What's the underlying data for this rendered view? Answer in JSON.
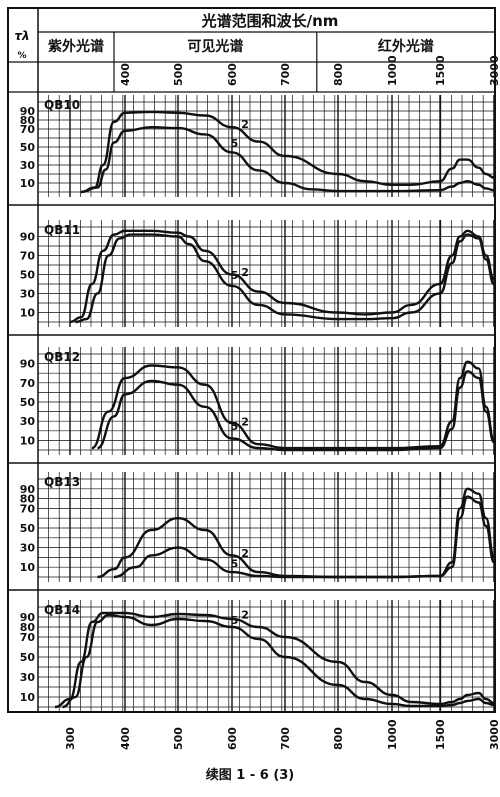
{
  "header": {
    "y_symbol": "τλ",
    "y_unit": "%",
    "title": "光谱范围和波长/nm",
    "regions": [
      "紫外光谱",
      "可见光谱",
      "红外光谱"
    ]
  },
  "caption": "续图 1 - 6 (3)",
  "chart_data": [
    {
      "type": "line",
      "title": "QB10",
      "xlabel": "光谱范围和波长/nm",
      "ylabel": "τλ %",
      "ylim": [
        0,
        100
      ],
      "y_ticks": [
        10,
        30,
        50,
        70,
        80,
        90
      ],
      "x_ticks": [
        300,
        400,
        500,
        600,
        700,
        800,
        1000,
        1500,
        3000
      ],
      "x_scale": "non-uniform (wavelength nm)",
      "grid": true,
      "series": [
        {
          "name": "2",
          "x": [
            320,
            345,
            360,
            380,
            400,
            450,
            500,
            550,
            600,
            650,
            700,
            800,
            900,
            1000,
            1200,
            1500,
            1800,
            2000,
            2200,
            2500,
            2700,
            3000
          ],
          "y": [
            0,
            5,
            30,
            78,
            88,
            89,
            88,
            85,
            72,
            56,
            40,
            20,
            12,
            8,
            8,
            12,
            26,
            36,
            36,
            27,
            20,
            16
          ]
        },
        {
          "name": "5",
          "x": [
            320,
            350,
            365,
            380,
            400,
            450,
            500,
            550,
            600,
            650,
            700,
            750,
            800,
            900,
            1000,
            1500,
            1800,
            2000,
            2200,
            2500,
            2700,
            3000
          ],
          "y": [
            0,
            5,
            25,
            55,
            68,
            72,
            71,
            64,
            44,
            24,
            10,
            3,
            1,
            1,
            1,
            2,
            6,
            10,
            12,
            8,
            4,
            2
          ]
        }
      ]
    },
    {
      "type": "line",
      "title": "QB11",
      "ylim": [
        0,
        100
      ],
      "y_ticks": [
        10,
        30,
        50,
        70,
        90
      ],
      "x_ticks": [
        300,
        400,
        500,
        600,
        700,
        800,
        1000,
        1500,
        3000
      ],
      "grid": true,
      "series": [
        {
          "name": "2",
          "x": [
            300,
            320,
            340,
            360,
            380,
            400,
            450,
            500,
            520,
            550,
            600,
            650,
            700,
            800,
            900,
            1000,
            1200,
            1500,
            1800,
            2000,
            2200,
            2500,
            2700,
            3000
          ],
          "y": [
            0,
            5,
            40,
            75,
            92,
            96,
            96,
            94,
            90,
            75,
            50,
            32,
            20,
            10,
            8,
            10,
            18,
            40,
            70,
            90,
            96,
            90,
            70,
            45
          ]
        },
        {
          "name": "5",
          "x": [
            310,
            330,
            350,
            370,
            390,
            410,
            450,
            500,
            520,
            550,
            600,
            650,
            700,
            800,
            900,
            1000,
            1200,
            1500,
            1800,
            2000,
            2200,
            2500,
            2700,
            3000
          ],
          "y": [
            0,
            3,
            30,
            70,
            88,
            92,
            92,
            90,
            82,
            64,
            38,
            18,
            8,
            3,
            3,
            4,
            10,
            30,
            62,
            85,
            92,
            88,
            66,
            40
          ]
        }
      ]
    },
    {
      "type": "line",
      "title": "QB12",
      "ylim": [
        0,
        100
      ],
      "y_ticks": [
        10,
        30,
        50,
        70,
        90
      ],
      "x_ticks": [
        300,
        400,
        500,
        600,
        700,
        800,
        1000,
        1500,
        3000
      ],
      "grid": true,
      "series": [
        {
          "name": "2",
          "x": [
            340,
            370,
            400,
            450,
            500,
            550,
            600,
            650,
            700,
            800,
            1000,
            1500,
            1800,
            2000,
            2200,
            2500,
            2700,
            3000
          ],
          "y": [
            2,
            40,
            75,
            88,
            86,
            68,
            28,
            6,
            2,
            2,
            2,
            4,
            30,
            75,
            92,
            85,
            45,
            10
          ]
        },
        {
          "name": "5",
          "x": [
            350,
            380,
            400,
            450,
            500,
            550,
            600,
            650,
            700,
            800,
            1000,
            1500,
            1800,
            2000,
            2200,
            2500,
            2700,
            3000
          ],
          "y": [
            2,
            35,
            58,
            72,
            68,
            45,
            12,
            2,
            0,
            0,
            0,
            2,
            22,
            65,
            82,
            75,
            40,
            8
          ]
        }
      ]
    },
    {
      "type": "line",
      "title": "QB13",
      "ylim": [
        0,
        100
      ],
      "y_ticks": [
        10,
        30,
        50,
        70,
        80,
        90
      ],
      "x_ticks": [
        300,
        400,
        500,
        600,
        700,
        800,
        1000,
        1500,
        3000
      ],
      "grid": true,
      "series": [
        {
          "name": "2",
          "x": [
            350,
            380,
            400,
            450,
            500,
            550,
            600,
            650,
            700,
            800,
            1000,
            1500,
            1800,
            2000,
            2200,
            2500,
            2700,
            3000
          ],
          "y": [
            0,
            8,
            20,
            48,
            60,
            48,
            22,
            5,
            1,
            0,
            0,
            1,
            15,
            70,
            90,
            85,
            60,
            20
          ]
        },
        {
          "name": "5",
          "x": [
            380,
            420,
            450,
            500,
            550,
            600,
            650,
            700,
            800,
            1000,
            1500,
            1800,
            2000,
            2200,
            2500,
            2700,
            3000
          ],
          "y": [
            0,
            10,
            22,
            30,
            18,
            5,
            1,
            0,
            0,
            0,
            1,
            10,
            60,
            82,
            76,
            52,
            15
          ]
        }
      ]
    },
    {
      "type": "line",
      "title": "QB14",
      "ylim": [
        0,
        100
      ],
      "y_ticks": [
        10,
        30,
        50,
        70,
        80,
        90
      ],
      "x_ticks": [
        300,
        400,
        500,
        600,
        700,
        800,
        1000,
        1500,
        3000
      ],
      "grid": true,
      "series": [
        {
          "name": "2",
          "x": [
            280,
            300,
            320,
            340,
            360,
            400,
            450,
            500,
            550,
            600,
            650,
            700,
            800,
            900,
            1000,
            1200,
            1500,
            1800,
            2000,
            2200,
            2500,
            2700,
            3000
          ],
          "y": [
            0,
            8,
            45,
            85,
            94,
            94,
            90,
            93,
            92,
            88,
            80,
            70,
            45,
            25,
            12,
            5,
            3,
            5,
            8,
            12,
            14,
            8,
            4
          ]
        },
        {
          "name": "5",
          "x": [
            290,
            310,
            330,
            350,
            370,
            400,
            450,
            500,
            550,
            600,
            650,
            700,
            800,
            900,
            1000,
            1200,
            1500,
            1800,
            2000,
            2200,
            2500,
            2700,
            3000
          ],
          "y": [
            0,
            10,
            50,
            85,
            92,
            90,
            82,
            88,
            86,
            80,
            68,
            50,
            22,
            8,
            3,
            1,
            1,
            2,
            4,
            6,
            8,
            4,
            2
          ]
        }
      ]
    }
  ]
}
